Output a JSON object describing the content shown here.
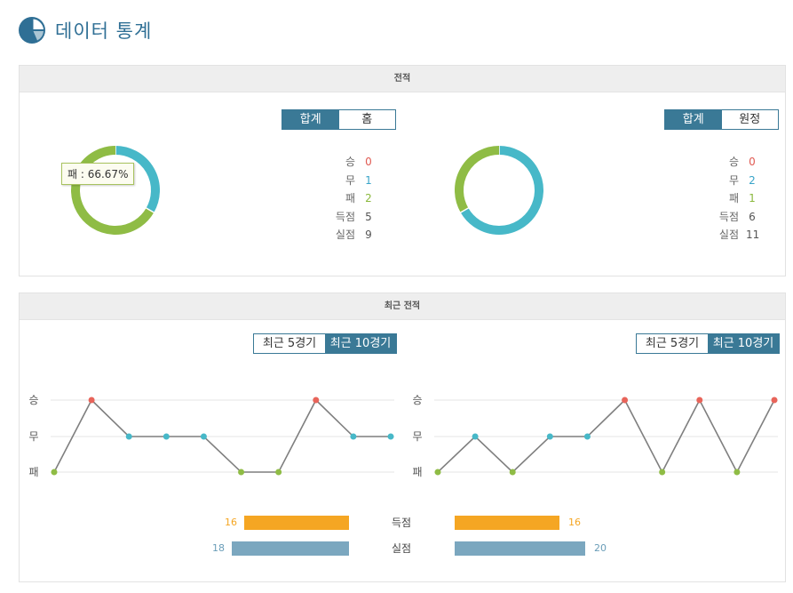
{
  "header": {
    "title": "데이터 통계",
    "icon": "pie-chart-icon"
  },
  "colors": {
    "win": "#e8645a",
    "draw": "#47b8c8",
    "loss": "#8fbc45",
    "brand": "#3a7996",
    "scored": "#f5a623",
    "conceded": "#7ba7bf"
  },
  "record": {
    "title": "전적",
    "left": {
      "tabs": [
        {
          "label": "합계",
          "active": true
        },
        {
          "label": "홈",
          "active": false
        }
      ],
      "stats": [
        {
          "label": "승",
          "value": "0",
          "color": "red"
        },
        {
          "label": "무",
          "value": "1",
          "color": "blue"
        },
        {
          "label": "패",
          "value": "2",
          "color": "green"
        },
        {
          "label": "득점",
          "value": "5",
          "color": "gray"
        },
        {
          "label": "실점",
          "value": "9",
          "color": "gray"
        }
      ],
      "tooltip": "패 : 66.67%"
    },
    "right": {
      "tabs": [
        {
          "label": "합계",
          "active": true
        },
        {
          "label": "원정",
          "active": false
        }
      ],
      "stats": [
        {
          "label": "승",
          "value": "0",
          "color": "red"
        },
        {
          "label": "무",
          "value": "2",
          "color": "blue"
        },
        {
          "label": "패",
          "value": "1",
          "color": "green"
        },
        {
          "label": "득점",
          "value": "6",
          "color": "gray"
        },
        {
          "label": "실점",
          "value": "11",
          "color": "gray"
        }
      ]
    }
  },
  "recent": {
    "title": "최근 전적",
    "left": {
      "tabs": [
        {
          "label": "최근 5경기",
          "active": false
        },
        {
          "label": "최근 10경기",
          "active": true
        }
      ]
    },
    "right": {
      "tabs": [
        {
          "label": "최근 5경기",
          "active": false
        },
        {
          "label": "최근 10경기",
          "active": true
        }
      ]
    },
    "scored_label": "득점",
    "conceded_label": "실점",
    "left_scored": "16",
    "left_conceded": "18",
    "right_scored": "16",
    "right_conceded": "20"
  },
  "chart_data": [
    {
      "type": "pie",
      "categories": [
        "승",
        "무",
        "패"
      ],
      "values": [
        0,
        1,
        2
      ],
      "colors": [
        "#e8645a",
        "#47b8c8",
        "#8fbc45"
      ]
    },
    {
      "type": "pie",
      "categories": [
        "승",
        "무",
        "패"
      ],
      "values": [
        0,
        2,
        1
      ],
      "colors": [
        "#e8645a",
        "#47b8c8",
        "#8fbc45"
      ]
    },
    {
      "type": "line",
      "y_categories": [
        "승",
        "무",
        "패"
      ],
      "results": [
        "패",
        "승",
        "무",
        "무",
        "무",
        "패",
        "패",
        "승",
        "무",
        "무"
      ]
    },
    {
      "type": "line",
      "y_categories": [
        "승",
        "무",
        "패"
      ],
      "results": [
        "패",
        "무",
        "패",
        "무",
        "무",
        "승",
        "패",
        "승",
        "패",
        "승"
      ]
    },
    {
      "type": "bar",
      "categories": [
        "득점",
        "실점"
      ],
      "series": [
        {
          "values": [
            16,
            18
          ]
        },
        {
          "values": [
            16,
            20
          ]
        }
      ]
    }
  ]
}
